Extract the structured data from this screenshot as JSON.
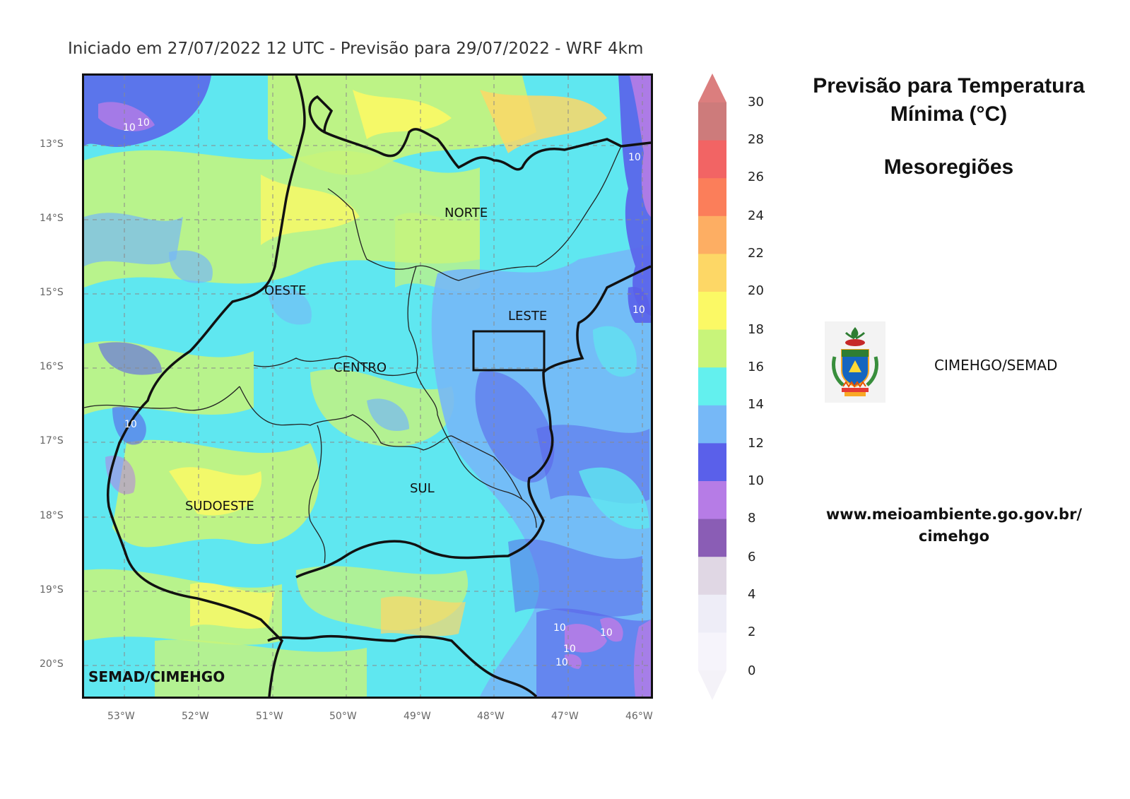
{
  "header": {
    "run_title": "Iniciado em 27/07/2022 12 UTC - Previsão para 29/07/2022 - WRF 4km"
  },
  "map": {
    "lat_ticks": [
      "13°S",
      "14°S",
      "15°S",
      "16°S",
      "17°S",
      "18°S",
      "19°S",
      "20°S"
    ],
    "lon_ticks": [
      "53°W",
      "52°W",
      "51°W",
      "50°W",
      "49°W",
      "48°W",
      "47°W",
      "46°W"
    ],
    "regions": [
      "NORTE",
      "OESTE",
      "LESTE",
      "CENTRO",
      "SUL",
      "SUDOESTE"
    ],
    "watermark": "SEMAD/CIMEHGO",
    "contour_label": "10",
    "grid": true
  },
  "colorbar": {
    "labels": [
      "30",
      "28",
      "26",
      "24",
      "22",
      "20",
      "18",
      "16",
      "14",
      "12",
      "10",
      "8",
      "6",
      "4",
      "2",
      "0"
    ],
    "colors": [
      "#cd7b7b",
      "#f26464",
      "#fb7e5a",
      "#fdae63",
      "#fdd766",
      "#fbf965",
      "#c8f47a",
      "#63f0ee",
      "#76b8f7",
      "#5a60ea",
      "#b67ce6",
      "#8a5db5",
      "#e0d7e4",
      "#eeedf7",
      "#f6f4fb"
    ],
    "top_arrow_color": "#db7e7e",
    "bottom_arrow_color": "#f4f2f8"
  },
  "panel": {
    "title": "Previsão para Temperatura Mínima (°C)",
    "subtitle": "Mesoregiões",
    "agency": "CIMEHGO/SEMAD",
    "website_line1": "www.meioambiente.go.gov.br/",
    "website_line2": "cimehgo"
  }
}
